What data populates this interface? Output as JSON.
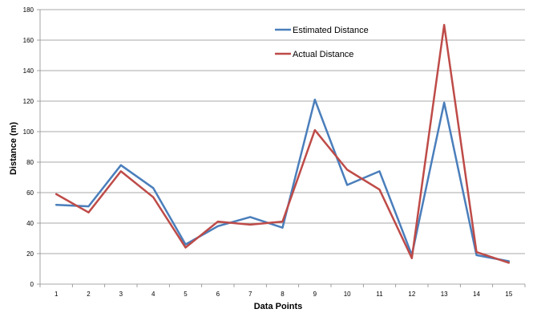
{
  "chart_data": {
    "type": "line",
    "title": "",
    "xlabel": "Data Points",
    "ylabel": "Distance (m)",
    "categories": [
      "1",
      "2",
      "3",
      "4",
      "5",
      "6",
      "7",
      "8",
      "9",
      "10",
      "11",
      "12",
      "13",
      "14",
      "15"
    ],
    "ylim": [
      0,
      180
    ],
    "yticks": [
      0,
      20,
      40,
      60,
      80,
      100,
      120,
      140,
      160,
      180
    ],
    "grid": true,
    "legend_position": "top-center",
    "series": [
      {
        "name": "Estimated Distance",
        "color": "#4a7ebb",
        "values": [
          52,
          51,
          78,
          63,
          26,
          38,
          44,
          37,
          121,
          65,
          74,
          19,
          119,
          19,
          15
        ]
      },
      {
        "name": "Actual Distance",
        "color": "#be4b48",
        "values": [
          59,
          47,
          74,
          57,
          24,
          41,
          39,
          41,
          101,
          75,
          62,
          17,
          170,
          21,
          14
        ]
      }
    ]
  }
}
